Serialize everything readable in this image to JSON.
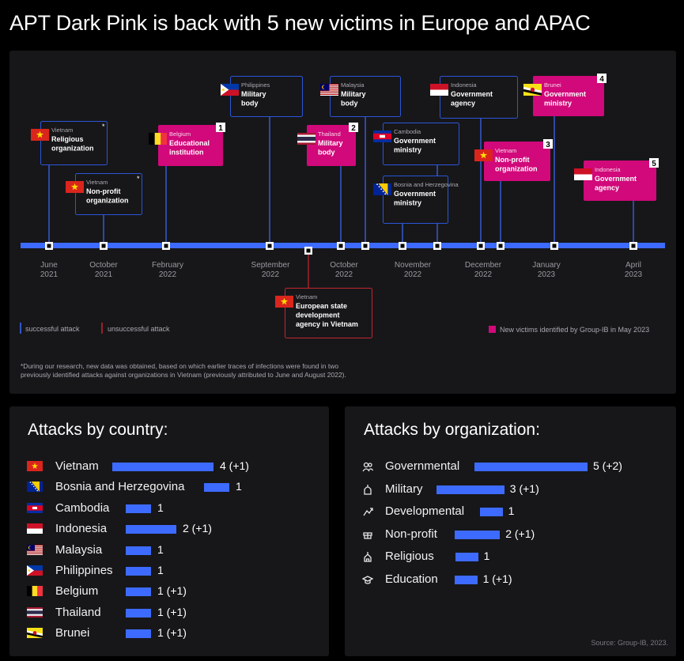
{
  "title": "APT Dark Pink is back with 5 new victims in Europe and APAC",
  "colors": {
    "background": "#000000",
    "panel": "#17171a",
    "accent_blue": "#3d6bff",
    "accent_pink": "#d1097a",
    "unsuccessful_red": "#c2262e",
    "box_border": "#2b55d6"
  },
  "timeline": {
    "months": [
      {
        "month": "June",
        "year": "2021"
      },
      {
        "month": "October",
        "year": "2021"
      },
      {
        "month": "February",
        "year": "2022"
      },
      {
        "month": "September",
        "year": "2022"
      },
      {
        "month": "October",
        "year": "2022"
      },
      {
        "month": "November",
        "year": "2022"
      },
      {
        "month": "December",
        "year": "2022"
      },
      {
        "month": "January",
        "year": "2023"
      },
      {
        "month": "April",
        "year": "2023"
      }
    ],
    "events": [
      {
        "country": "Vietnam",
        "org": [
          "Religious",
          "organization"
        ],
        "flag": "vietnam",
        "status": "successful",
        "new": false,
        "asterisk": true,
        "number": ""
      },
      {
        "country": "Vietnam",
        "org": [
          "Non-profit",
          "organization"
        ],
        "flag": "vietnam",
        "status": "successful",
        "new": false,
        "asterisk": true,
        "number": ""
      },
      {
        "country": "Belgium",
        "org": [
          "Educational",
          "institution"
        ],
        "flag": "belgium",
        "status": "successful",
        "new": true,
        "asterisk": false,
        "number": "1"
      },
      {
        "country": "Philippines",
        "org": [
          "Military",
          "body"
        ],
        "flag": "philippines",
        "status": "successful",
        "new": false,
        "asterisk": false,
        "number": ""
      },
      {
        "country": "Thailand",
        "org": [
          "Military",
          "body"
        ],
        "flag": "thailand",
        "status": "successful",
        "new": true,
        "asterisk": false,
        "number": "2"
      },
      {
        "country": "Malaysia",
        "org": [
          "Military",
          "body"
        ],
        "flag": "malaysia",
        "status": "successful",
        "new": false,
        "asterisk": false,
        "number": ""
      },
      {
        "country": "Cambodia",
        "org": [
          "Government",
          "ministry"
        ],
        "flag": "cambodia",
        "status": "successful",
        "new": false,
        "asterisk": false,
        "number": ""
      },
      {
        "country": "Bosnia and Herzegovina",
        "org": [
          "Government",
          "ministry"
        ],
        "flag": "bosnia",
        "status": "successful",
        "new": false,
        "asterisk": false,
        "number": ""
      },
      {
        "country": "Indonesia",
        "org": [
          "Government",
          "agency"
        ],
        "flag": "indonesia",
        "status": "successful",
        "new": false,
        "asterisk": false,
        "number": ""
      },
      {
        "country": "Vietnam",
        "org": [
          "Non-profit",
          "organization"
        ],
        "flag": "vietnam",
        "status": "successful",
        "new": true,
        "asterisk": false,
        "number": "3"
      },
      {
        "country": "Brunei",
        "org": [
          "Government",
          "ministry"
        ],
        "flag": "brunei",
        "status": "successful",
        "new": true,
        "asterisk": false,
        "number": "4"
      },
      {
        "country": "Indonesia",
        "org": [
          "Government",
          "agency"
        ],
        "flag": "indonesia",
        "status": "successful",
        "new": true,
        "asterisk": false,
        "number": "5"
      },
      {
        "country": "Vietnam",
        "org": [
          "European state",
          "development",
          "agency in Vietnam"
        ],
        "flag": "vietnam",
        "status": "unsuccessful",
        "new": false,
        "asterisk": false,
        "number": ""
      }
    ],
    "legend": {
      "successful": "successful attack",
      "unsuccessful": "unsuccessful attack",
      "new": "New victims identified by Group-IB in May 2023"
    },
    "footnote": [
      "*During our research, new data was obtained, based on which earlier traces of infections were found in two",
      "previously identified attacks against organizations in Vietnam (previously attributed to June and August 2022)."
    ]
  },
  "chart_data": [
    {
      "type": "bar",
      "title": "Attacks by country:",
      "categories": [
        "Vietnam",
        "Bosnia and Herzegovina",
        "Cambodia",
        "Indonesia",
        "Malaysia",
        "Philippines",
        "Belgium",
        "Thailand",
        "Brunei"
      ],
      "values": [
        4,
        1,
        1,
        2,
        1,
        1,
        1,
        1,
        1
      ],
      "labels": [
        "4 (+1)",
        "1",
        "1",
        "2 (+1)",
        "1",
        "1",
        "1 (+1)",
        "1 (+1)",
        "1 (+1)"
      ],
      "flags": [
        "vietnam",
        "bosnia",
        "cambodia",
        "indonesia",
        "malaysia",
        "philippines",
        "belgium",
        "thailand",
        "brunei"
      ]
    },
    {
      "type": "bar",
      "title": "Attacks by organization:",
      "categories": [
        "Governmental",
        "Military",
        "Developmental",
        "Non-profit",
        "Religious",
        "Education"
      ],
      "values": [
        5,
        3,
        1,
        2,
        1,
        1
      ],
      "labels": [
        "5 (+2)",
        "3 (+1)",
        "1",
        "2 (+1)",
        "1",
        "1 (+1)"
      ],
      "icons": [
        "people-icon",
        "military-icon",
        "development-icon",
        "non-profit-icon",
        "religious-icon",
        "education-icon"
      ]
    }
  ],
  "source": "Source: Group-IB, 2023."
}
